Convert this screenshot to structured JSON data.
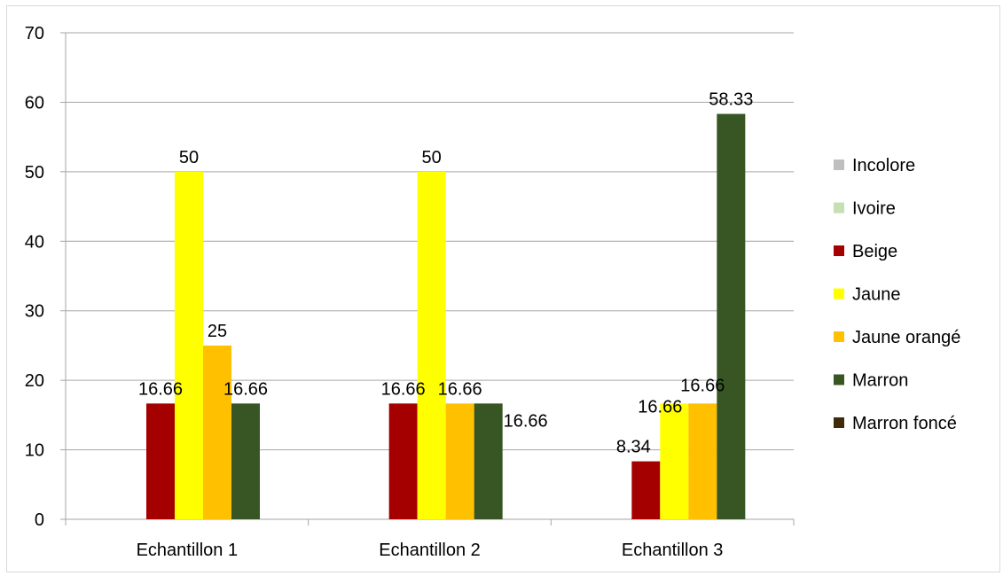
{
  "chart_data": {
    "type": "bar",
    "categories": [
      "Echantillon 1",
      "Echantillon 2",
      "Echantillon 3"
    ],
    "series": [
      {
        "name": "Incolore",
        "color": "#bfbfbf",
        "values": [
          0,
          0,
          0
        ]
      },
      {
        "name": "Ivoire",
        "color": "#c6e0b4",
        "values": [
          0,
          0,
          0
        ]
      },
      {
        "name": "Beige",
        "color": "#a50000",
        "values": [
          16.66,
          16.66,
          8.34
        ]
      },
      {
        "name": "Jaune",
        "color": "#ffff00",
        "values": [
          50,
          50,
          16.66
        ]
      },
      {
        "name": "Jaune orangé",
        "color": "#ffc000",
        "values": [
          25,
          16.66,
          16.66
        ]
      },
      {
        "name": "Marron",
        "color": "#375623",
        "values": [
          16.66,
          16.66,
          58.33
        ]
      },
      {
        "name": "Marron foncé",
        "color": "#3f2a0a",
        "values": [
          0,
          0,
          0
        ]
      }
    ],
    "data_labels": [
      {
        "series": "Beige",
        "category": "Echantillon 1",
        "text": "16.66"
      },
      {
        "series": "Jaune",
        "category": "Echantillon 1",
        "text": "50"
      },
      {
        "series": "Jaune orangé",
        "category": "Echantillon 1",
        "text": "25"
      },
      {
        "series": "Marron",
        "category": "Echantillon 1",
        "text": "16.66"
      },
      {
        "series": "Beige",
        "category": "Echantillon 2",
        "text": "16.66"
      },
      {
        "series": "Jaune",
        "category": "Echantillon 2",
        "text": "50"
      },
      {
        "series": "Jaune orangé",
        "category": "Echantillon 2",
        "text": "16.66"
      },
      {
        "series": "Marron",
        "category": "Echantillon 2",
        "text": "16.66"
      },
      {
        "series": "Beige",
        "category": "Echantillon 3",
        "text": "8.34"
      },
      {
        "series": "Jaune",
        "category": "Echantillon 3",
        "text": "16.66"
      },
      {
        "series": "Jaune orangé",
        "category": "Echantillon 3",
        "text": "16.66"
      },
      {
        "series": "Marron",
        "category": "Echantillon 3",
        "text": "58.33"
      }
    ],
    "yticks": [
      "0",
      "10",
      "20",
      "30",
      "40",
      "50",
      "60",
      "70"
    ],
    "ylim": [
      0,
      70
    ],
    "grid": true,
    "legend_position": "right"
  }
}
